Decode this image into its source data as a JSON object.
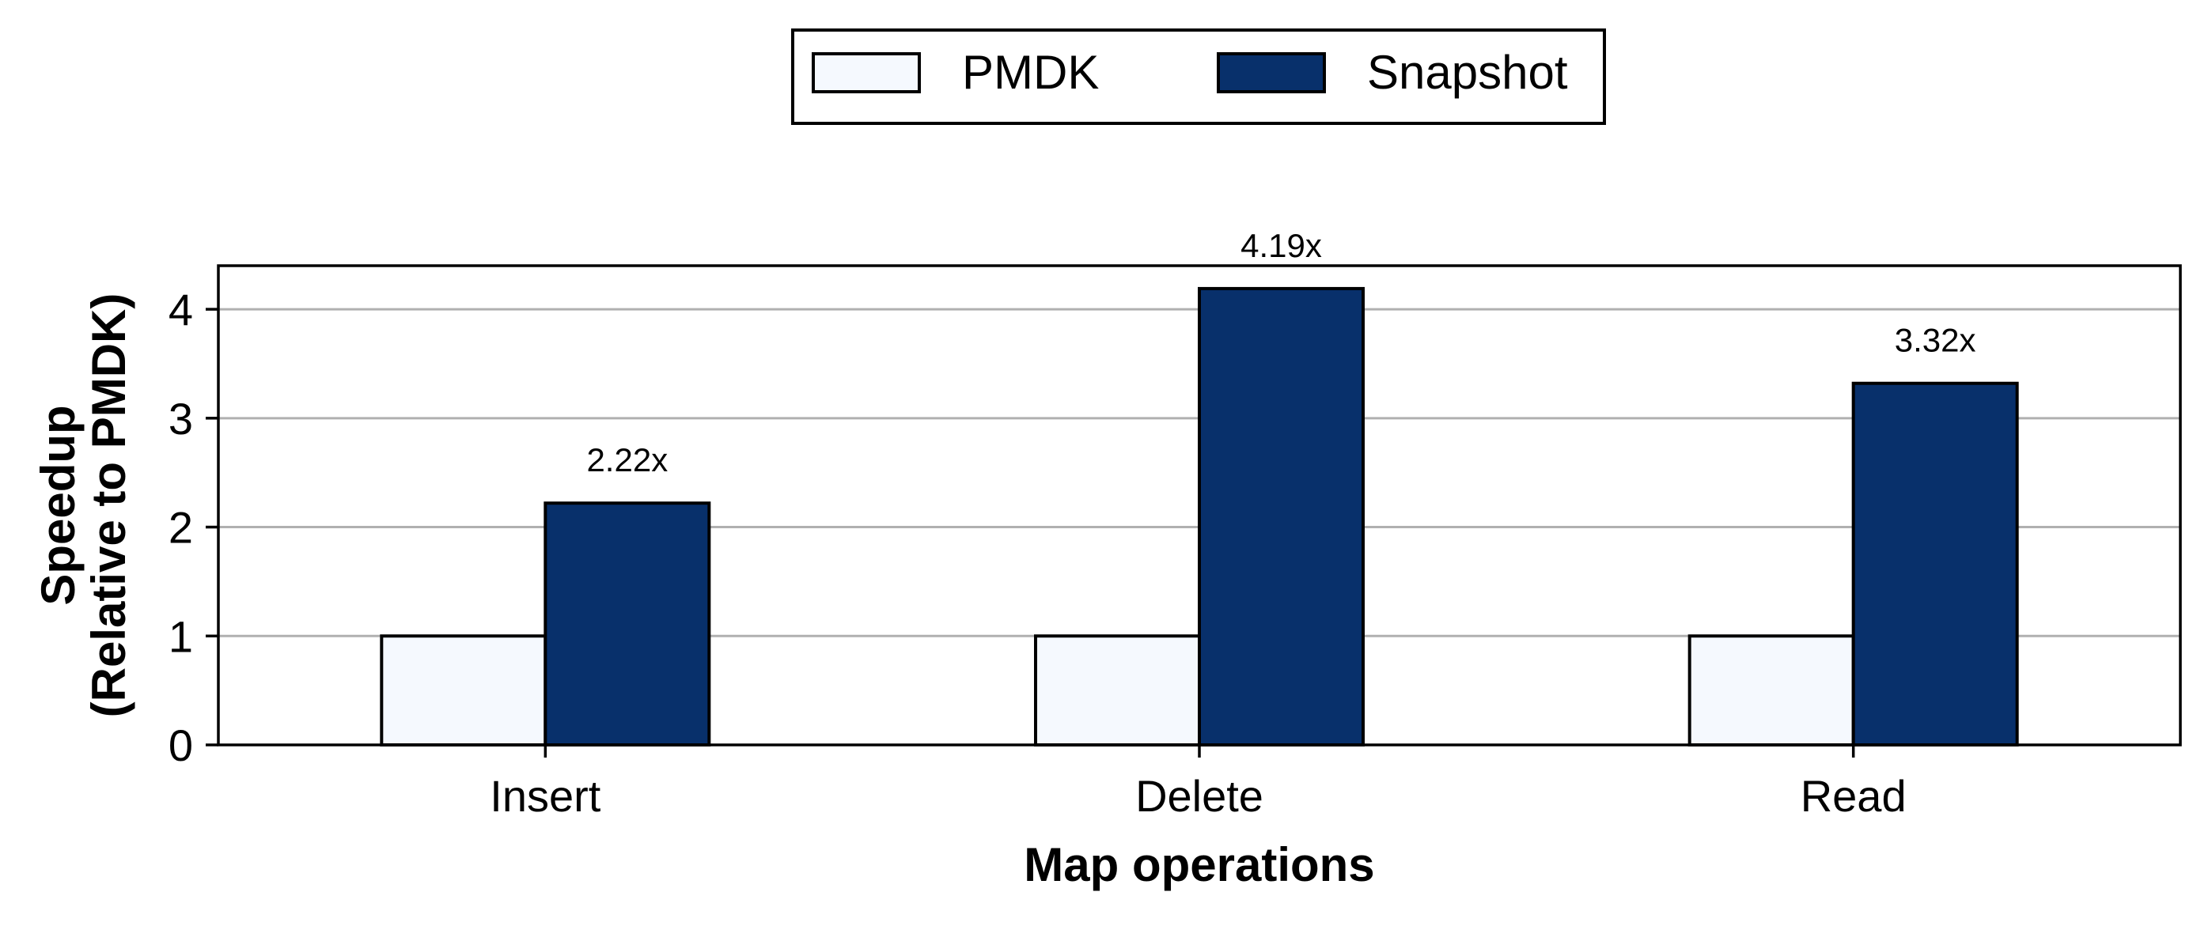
{
  "chart_data": {
    "type": "bar",
    "categories": [
      "Insert",
      "Delete",
      "Read"
    ],
    "series": [
      {
        "name": "PMDK",
        "values": [
          1,
          1,
          1
        ],
        "color": "#f5f9fe"
      },
      {
        "name": "Snapshot",
        "values": [
          2.22,
          4.19,
          3.32
        ],
        "color": "#08306b"
      }
    ],
    "data_labels": {
      "series": "Snapshot",
      "texts": [
        "2.22x",
        "4.19x",
        "3.32x"
      ]
    },
    "xlabel": "Map operations",
    "ylabel_lines": [
      "Speedup",
      "(Relative to PMDK)"
    ],
    "ylim": [
      0,
      4.4
    ],
    "yticks": [
      0,
      1,
      2,
      3,
      4
    ],
    "grid": "horizontal",
    "legend_position": "top-center"
  }
}
